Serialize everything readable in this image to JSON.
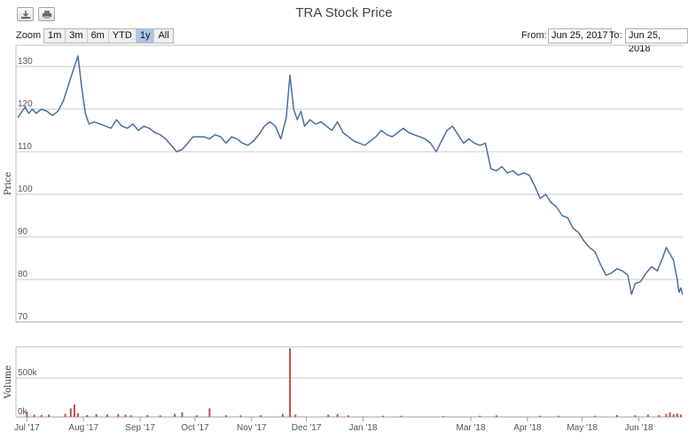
{
  "toolbar": {
    "download_icon": "download-icon",
    "print_icon": "print-icon"
  },
  "chart_data": {
    "type": "line",
    "title": "TRA Stock Price",
    "range_selector": {
      "zoom_label": "Zoom",
      "buttons": [
        "1m",
        "3m",
        "6m",
        "YTD",
        "1y",
        "All"
      ],
      "active": "1y",
      "from_label": "From:",
      "from_value": "Jun 25, 2017",
      "to_label": "To:",
      "to_value": "Jun 25, 2018"
    },
    "xlim": [
      "2017-06-25",
      "2018-06-25"
    ],
    "x_ticks": [
      "Jul '17",
      "Aug '17",
      "Sep '17",
      "Oct '17",
      "Nov '17",
      "Dec '17",
      "Jan '18",
      "Mar '18",
      "Apr '18",
      "May '18",
      "Jun '18"
    ],
    "x_tick_dates": [
      "2017-07-01",
      "2017-08-01",
      "2017-09-01",
      "2017-10-01",
      "2017-11-01",
      "2017-12-01",
      "2018-01-01",
      "2018-03-01",
      "2018-04-01",
      "2018-05-01",
      "2018-06-01"
    ],
    "price": {
      "ylabel": "Price",
      "ylim": [
        70,
        135
      ],
      "y_ticks": [
        "70",
        "80",
        "90",
        "100",
        "110",
        "120",
        "130"
      ],
      "grid": true,
      "color": "#4a6f9e",
      "points": [
        [
          "2017-06-26",
          118
        ],
        [
          "2017-06-30",
          120.5
        ],
        [
          "2017-07-02",
          119
        ],
        [
          "2017-07-04",
          120
        ],
        [
          "2017-07-06",
          119
        ],
        [
          "2017-07-09",
          120
        ],
        [
          "2017-07-12",
          119.5
        ],
        [
          "2017-07-15",
          118.5
        ],
        [
          "2017-07-18",
          119.5
        ],
        [
          "2017-07-21",
          122
        ],
        [
          "2017-07-24",
          126
        ],
        [
          "2017-07-27",
          130
        ],
        [
          "2017-07-29",
          132.5
        ],
        [
          "2017-07-31",
          125
        ],
        [
          "2017-08-02",
          119
        ],
        [
          "2017-08-04",
          116.5
        ],
        [
          "2017-08-07",
          117
        ],
        [
          "2017-08-10",
          116.5
        ],
        [
          "2017-08-13",
          116
        ],
        [
          "2017-08-16",
          115.5
        ],
        [
          "2017-08-19",
          117.5
        ],
        [
          "2017-08-22",
          116
        ],
        [
          "2017-08-25",
          115.5
        ],
        [
          "2017-08-28",
          116.5
        ],
        [
          "2017-08-31",
          115
        ],
        [
          "2017-09-03",
          116
        ],
        [
          "2017-09-06",
          115.5
        ],
        [
          "2017-09-09",
          114.5
        ],
        [
          "2017-09-12",
          114
        ],
        [
          "2017-09-15",
          113
        ],
        [
          "2017-09-18",
          111.5
        ],
        [
          "2017-09-21",
          110
        ],
        [
          "2017-09-24",
          110.5
        ],
        [
          "2017-09-27",
          112
        ],
        [
          "2017-09-30",
          113.5
        ],
        [
          "2017-10-03",
          113.5
        ],
        [
          "2017-10-06",
          113.5
        ],
        [
          "2017-10-09",
          113
        ],
        [
          "2017-10-12",
          114
        ],
        [
          "2017-10-15",
          113.5
        ],
        [
          "2017-10-18",
          112
        ],
        [
          "2017-10-21",
          113.5
        ],
        [
          "2017-10-24",
          113
        ],
        [
          "2017-10-27",
          112
        ],
        [
          "2017-10-30",
          111.5
        ],
        [
          "2017-11-02",
          112.5
        ],
        [
          "2017-11-05",
          114
        ],
        [
          "2017-11-08",
          116
        ],
        [
          "2017-11-11",
          117
        ],
        [
          "2017-11-14",
          116
        ],
        [
          "2017-11-17",
          113
        ],
        [
          "2017-11-20",
          118
        ],
        [
          "2017-11-22",
          128
        ],
        [
          "2017-11-24",
          120
        ],
        [
          "2017-11-26",
          117.5
        ],
        [
          "2017-11-28",
          119.5
        ],
        [
          "2017-11-30",
          116
        ],
        [
          "2017-12-03",
          117.5
        ],
        [
          "2017-12-06",
          116.5
        ],
        [
          "2017-12-09",
          117
        ],
        [
          "2017-12-12",
          116
        ],
        [
          "2017-12-15",
          115
        ],
        [
          "2017-12-18",
          117
        ],
        [
          "2017-12-21",
          114.5
        ],
        [
          "2017-12-24",
          113.5
        ],
        [
          "2017-12-27",
          112.5
        ],
        [
          "2017-12-30",
          112
        ],
        [
          "2018-01-02",
          111.5
        ],
        [
          "2018-01-05",
          112.5
        ],
        [
          "2018-01-08",
          113.5
        ],
        [
          "2018-01-11",
          115
        ],
        [
          "2018-01-14",
          114
        ],
        [
          "2018-01-17",
          113.5
        ],
        [
          "2018-01-20",
          114.5
        ],
        [
          "2018-01-23",
          115.5
        ],
        [
          "2018-01-26",
          114.5
        ],
        [
          "2018-01-29",
          114
        ],
        [
          "2018-02-01",
          113.5
        ],
        [
          "2018-02-04",
          113
        ],
        [
          "2018-02-07",
          112
        ],
        [
          "2018-02-10",
          110
        ],
        [
          "2018-02-13",
          112.5
        ],
        [
          "2018-02-16",
          115
        ],
        [
          "2018-02-19",
          116
        ],
        [
          "2018-02-22",
          114
        ],
        [
          "2018-02-25",
          112
        ],
        [
          "2018-02-28",
          113
        ],
        [
          "2018-03-03",
          112
        ],
        [
          "2018-03-06",
          111.5
        ],
        [
          "2018-03-09",
          112
        ],
        [
          "2018-03-12",
          106
        ],
        [
          "2018-03-15",
          105.5
        ],
        [
          "2018-03-18",
          106.5
        ],
        [
          "2018-03-21",
          105
        ],
        [
          "2018-03-24",
          105.5
        ],
        [
          "2018-03-27",
          104.5
        ],
        [
          "2018-03-30",
          105
        ],
        [
          "2018-04-02",
          104.5
        ],
        [
          "2018-04-05",
          102
        ],
        [
          "2018-04-08",
          99
        ],
        [
          "2018-04-11",
          100
        ],
        [
          "2018-04-14",
          98
        ],
        [
          "2018-04-17",
          97
        ],
        [
          "2018-04-20",
          95
        ],
        [
          "2018-04-23",
          94.5
        ],
        [
          "2018-04-26",
          92
        ],
        [
          "2018-04-29",
          91
        ],
        [
          "2018-05-02",
          89
        ],
        [
          "2018-05-05",
          87.5
        ],
        [
          "2018-05-08",
          86.5
        ],
        [
          "2018-05-11",
          83.5
        ],
        [
          "2018-05-14",
          81
        ],
        [
          "2018-05-17",
          81.5
        ],
        [
          "2018-05-20",
          82.5
        ],
        [
          "2018-05-23",
          82
        ],
        [
          "2018-05-26",
          81
        ],
        [
          "2018-05-28",
          76.5
        ],
        [
          "2018-05-30",
          79
        ],
        [
          "2018-06-02",
          79.5
        ],
        [
          "2018-06-05",
          81.5
        ],
        [
          "2018-06-08",
          83
        ],
        [
          "2018-06-11",
          82
        ],
        [
          "2018-06-14",
          85
        ],
        [
          "2018-06-16",
          87.5
        ],
        [
          "2018-06-18",
          86
        ],
        [
          "2018-06-20",
          84.5
        ],
        [
          "2018-06-22",
          80
        ],
        [
          "2018-06-23",
          77
        ],
        [
          "2018-06-24",
          78
        ],
        [
          "2018-06-25",
          76.5
        ]
      ]
    },
    "volume": {
      "ylabel": "Volume",
      "ylim": [
        0,
        900000
      ],
      "y_ticks": [
        "0k",
        "500k"
      ],
      "y_tick_values": [
        0,
        500000
      ],
      "grid": true,
      "color": "#c0504d",
      "bars": [
        [
          "2017-07-01",
          70000
        ],
        [
          "2017-07-05",
          30000
        ],
        [
          "2017-07-09",
          25000
        ],
        [
          "2017-07-13",
          30000
        ],
        [
          "2017-07-22",
          40000
        ],
        [
          "2017-07-25",
          110000
        ],
        [
          "2017-07-27",
          160000
        ],
        [
          "2017-07-29",
          45000
        ],
        [
          "2017-08-03",
          25000
        ],
        [
          "2017-08-08",
          35000
        ],
        [
          "2017-08-14",
          30000
        ],
        [
          "2017-08-20",
          35000
        ],
        [
          "2017-08-24",
          30000
        ],
        [
          "2017-08-27",
          20000
        ],
        [
          "2017-09-05",
          25000
        ],
        [
          "2017-09-12",
          20000
        ],
        [
          "2017-09-20",
          40000
        ],
        [
          "2017-09-24",
          60000
        ],
        [
          "2017-10-02",
          20000
        ],
        [
          "2017-10-09",
          110000
        ],
        [
          "2017-10-18",
          20000
        ],
        [
          "2017-10-26",
          20000
        ],
        [
          "2017-11-06",
          20000
        ],
        [
          "2017-11-18",
          40000
        ],
        [
          "2017-11-22",
          880000
        ],
        [
          "2017-11-25",
          30000
        ],
        [
          "2017-12-13",
          30000
        ],
        [
          "2017-12-18",
          35000
        ],
        [
          "2017-12-24",
          20000
        ],
        [
          "2018-01-12",
          15000
        ],
        [
          "2018-01-22",
          15000
        ],
        [
          "2018-02-14",
          10000
        ],
        [
          "2018-03-06",
          15000
        ],
        [
          "2018-03-15",
          20000
        ],
        [
          "2018-04-08",
          15000
        ],
        [
          "2018-04-18",
          15000
        ],
        [
          "2018-05-08",
          15000
        ],
        [
          "2018-05-20",
          25000
        ],
        [
          "2018-05-30",
          20000
        ],
        [
          "2018-06-06",
          30000
        ],
        [
          "2018-06-12",
          25000
        ],
        [
          "2018-06-16",
          40000
        ],
        [
          "2018-06-18",
          60000
        ],
        [
          "2018-06-20",
          35000
        ],
        [
          "2018-06-22",
          45000
        ],
        [
          "2018-06-24",
          30000
        ]
      ]
    }
  }
}
